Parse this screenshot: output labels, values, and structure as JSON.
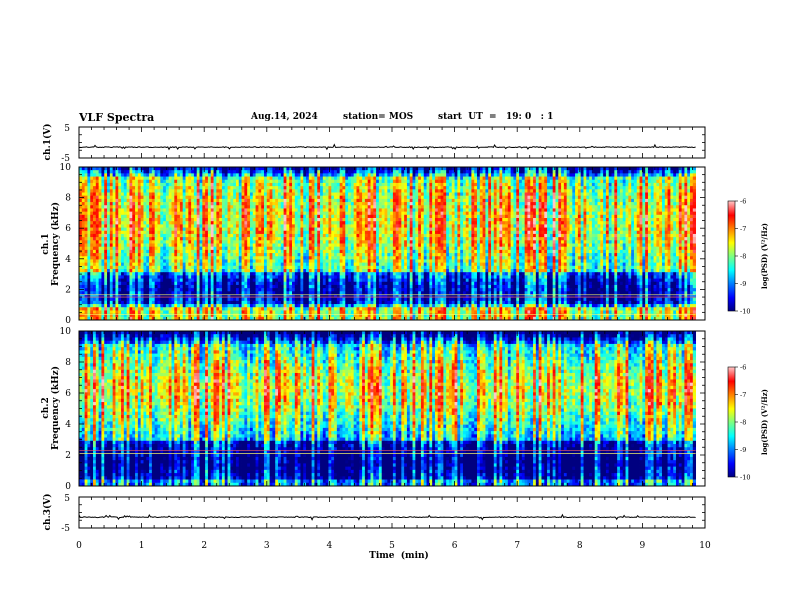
{
  "header": {
    "title": "VLF Spectra",
    "date": "Aug.14, 2024",
    "station": "station= MOS",
    "start_ut": "start  UT  =   19: 0   : 1"
  },
  "chart_data": [
    {
      "type": "line",
      "name": "ch1-waveform",
      "ylabel": "ch.1(V)",
      "ylim": [
        -5,
        5
      ],
      "ticks": [
        "5",
        "-5"
      ],
      "baseline": -1.5,
      "xlim": [
        0,
        10
      ]
    },
    {
      "type": "heatmap",
      "name": "ch1-spectrogram",
      "ylabel": "ch.1\nFrequency (kHz)",
      "ylabel_lines": [
        "ch.1",
        "Frequency (kHz)"
      ],
      "xlim": [
        0,
        10
      ],
      "data_xmax": 9.85,
      "ylim": [
        0,
        10
      ],
      "yticks": [
        "0",
        "2",
        "4",
        "6",
        "8",
        "10"
      ],
      "colorbar": {
        "label": "log(PSD) (V²/Hz)",
        "range": [
          -10,
          -6
        ],
        "ticks": [
          "-6",
          "-7",
          "-8",
          "-9",
          "-10"
        ]
      },
      "profile": {
        "note_free": true,
        "dark_band_khz": [
          1.0,
          3.2
        ],
        "hot_band_khz": [
          4.0,
          9.0
        ],
        "top_dark_khz": [
          9.3,
          10.0
        ],
        "line_khz": [
          1.5,
          1.65,
          0.35
        ]
      }
    },
    {
      "type": "heatmap",
      "name": "ch2-spectrogram",
      "ylabel": "ch.2\nFrequency (kHz)",
      "ylabel_lines": [
        "ch.2",
        "Frequency (kHz)"
      ],
      "xlim": [
        0,
        10
      ],
      "data_xmax": 9.85,
      "ylim": [
        0,
        10
      ],
      "yticks": [
        "0",
        "2",
        "4",
        "6",
        "8",
        "10"
      ],
      "colorbar": {
        "label": "log(PSD) (V²/Hz)",
        "range": [
          -10,
          -6
        ],
        "ticks": [
          "-6",
          "-7",
          "-8",
          "-9",
          "-10"
        ]
      },
      "profile": {
        "dark_band_khz": [
          0.4,
          3.0
        ],
        "hot_band_khz": [
          4.5,
          8.0
        ],
        "top_dark_khz": [
          9.2,
          10.0
        ],
        "line_khz": [
          2.3,
          2.1
        ]
      }
    },
    {
      "type": "line",
      "name": "ch3-waveform",
      "ylabel": "ch.3(V)",
      "ylim": [
        -5,
        5
      ],
      "ticks": [
        "5",
        "-5"
      ],
      "baseline": -1.5,
      "xlim": [
        0,
        10
      ]
    }
  ],
  "xaxis": {
    "label": "Time  (min)",
    "ticks": [
      "0",
      "1",
      "2",
      "3",
      "4",
      "5",
      "6",
      "7",
      "8",
      "9",
      "10"
    ],
    "xlim": [
      0,
      10
    ]
  },
  "colors": {
    "jet": [
      "#00007f",
      "#0000ff",
      "#007fff",
      "#00ffff",
      "#7fff7f",
      "#ffff00",
      "#ff7f00",
      "#ff0000",
      "#ffb0b0"
    ]
  }
}
